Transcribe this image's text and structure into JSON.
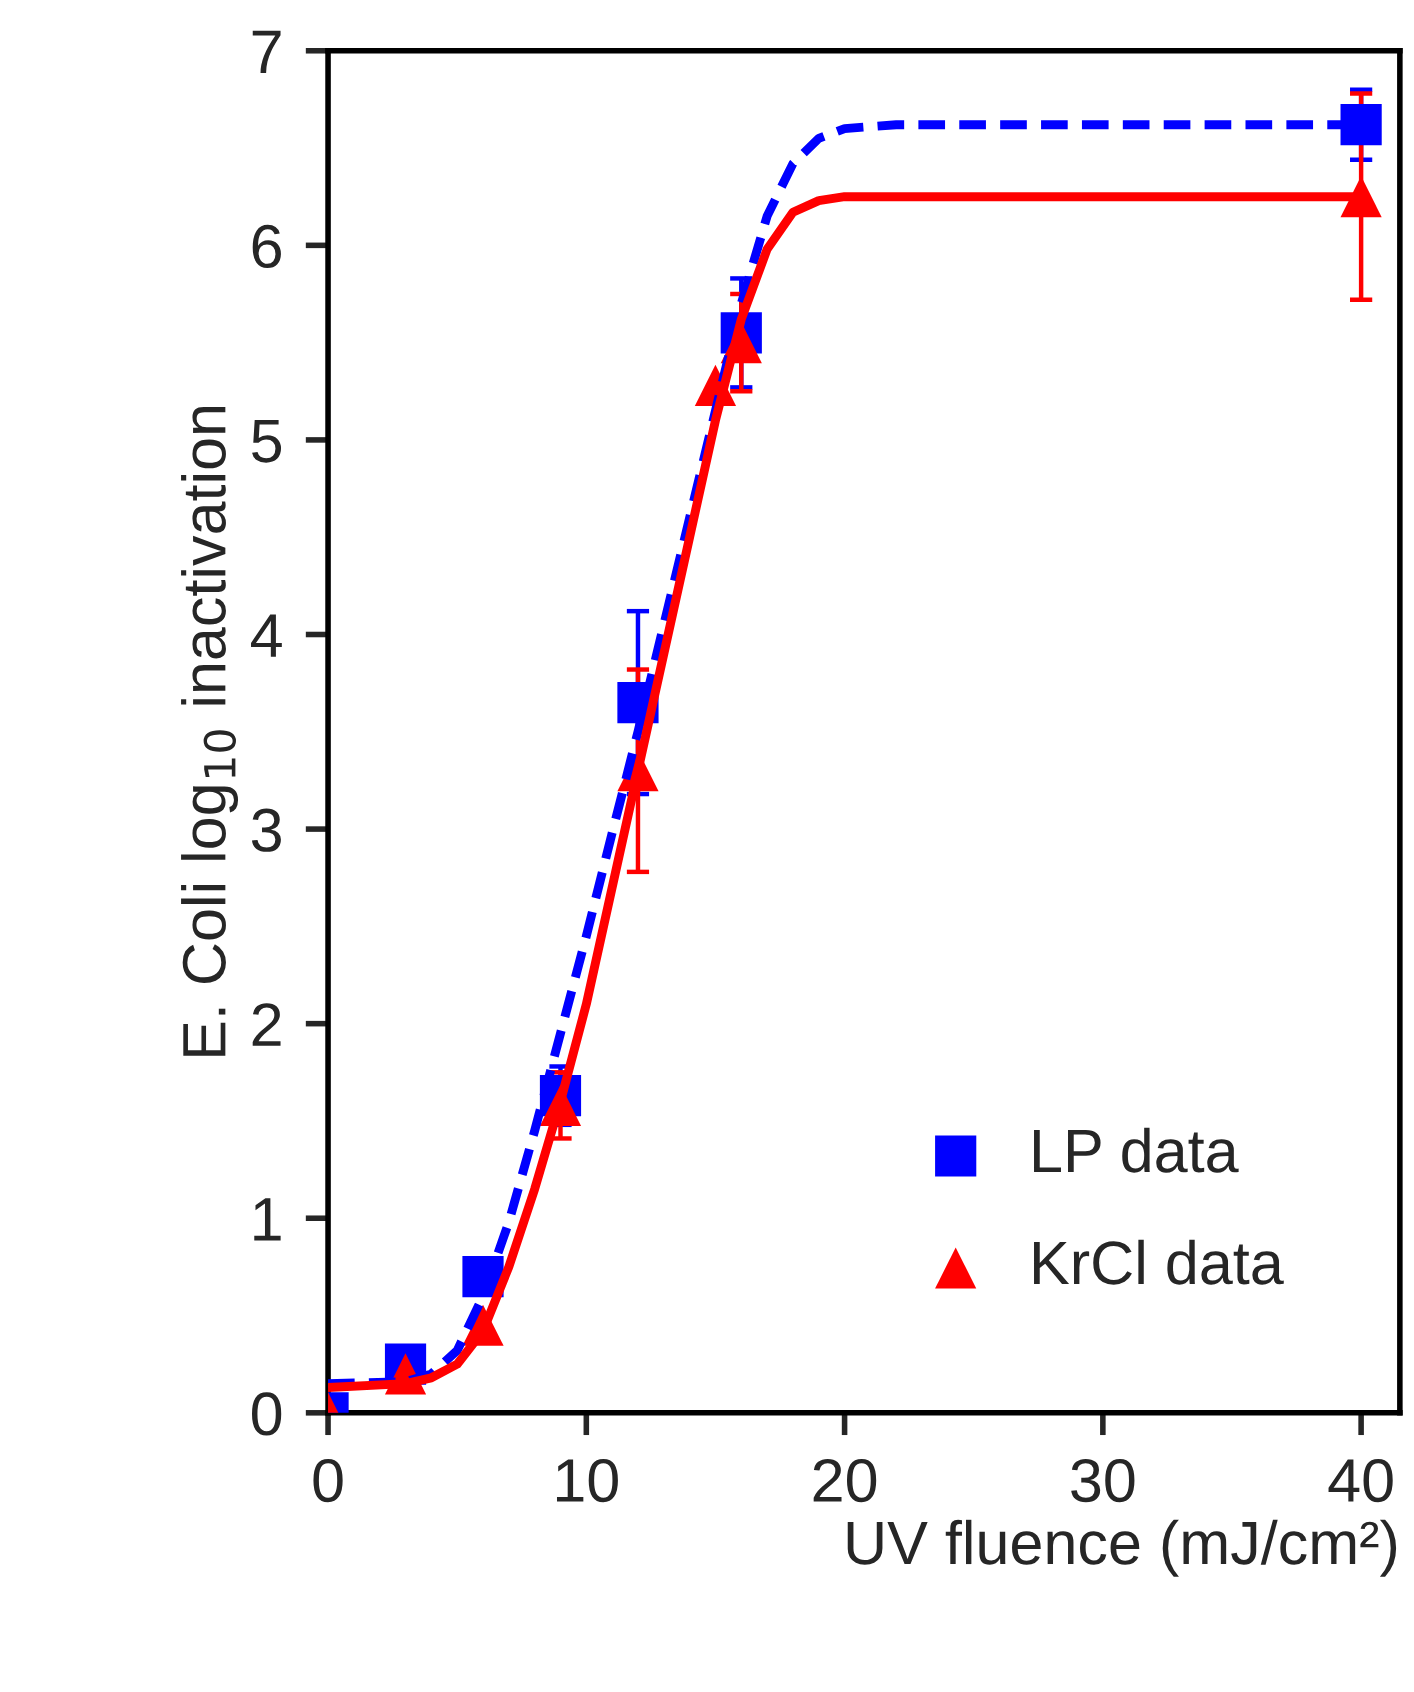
{
  "chart_data": {
    "type": "scatter",
    "xlabel": "UV fluence (mJ/cm²)",
    "ylabel": "E. Coli log$_{10}$ inactivation",
    "xlim": [
      0,
      41.5
    ],
    "xticks": [
      0,
      10,
      20,
      30,
      40
    ],
    "ylim": [
      0,
      7
    ],
    "yticks": [
      0,
      1,
      2,
      3,
      4,
      5,
      6,
      7
    ],
    "grid": false,
    "legend": "bottom right",
    "series": [
      {
        "type": "line",
        "color": "#0000ff",
        "line_style": "dashed",
        "marker": "none",
        "x": [
          0,
          3,
          4,
          5,
          6,
          7,
          8,
          9,
          10,
          11,
          12,
          13,
          14,
          15,
          16,
          17,
          18,
          19,
          20,
          22,
          25,
          40
        ],
        "values": [
          0.15,
          0.16,
          0.2,
          0.32,
          0.6,
          0.98,
          1.45,
          1.95,
          2.45,
          2.98,
          3.5,
          4.05,
          4.6,
          5.15,
          5.7,
          6.15,
          6.42,
          6.55,
          6.6,
          6.62,
          6.62,
          6.62
        ]
      },
      {
        "type": "line",
        "color": "#ff0000",
        "line_style": "solid",
        "marker": "none",
        "x": [
          0,
          3,
          4,
          5,
          6,
          7,
          8,
          9,
          10,
          11,
          12,
          13,
          14,
          15,
          16,
          17,
          18,
          19,
          20,
          22,
          25,
          40
        ],
        "values": [
          0.13,
          0.15,
          0.18,
          0.25,
          0.42,
          0.75,
          1.15,
          1.6,
          2.1,
          2.7,
          3.3,
          3.9,
          4.5,
          5.1,
          5.62,
          5.98,
          6.17,
          6.23,
          6.25,
          6.25,
          6.25,
          6.25
        ]
      },
      {
        "name": "LP data",
        "color": "#0000ff",
        "marker": "square",
        "x": [
          0,
          3,
          6,
          9,
          12,
          16,
          40
        ],
        "values": [
          0,
          0.25,
          0.7,
          1.63,
          3.65,
          5.55,
          6.62
        ],
        "errors": [
          null,
          null,
          null,
          0.15,
          0.47,
          0.28,
          0.18
        ]
      },
      {
        "name": "KrCl data",
        "color": "#ff0000",
        "marker": "triangle",
        "x": [
          0,
          3,
          6,
          9,
          12,
          15,
          16,
          40
        ],
        "values": [
          0,
          0.2,
          0.45,
          1.58,
          3.3,
          5.28,
          5.5,
          6.25
        ],
        "errors": [
          null,
          null,
          null,
          0.17,
          0.52,
          null,
          0.25,
          0.53
        ]
      }
    ]
  }
}
